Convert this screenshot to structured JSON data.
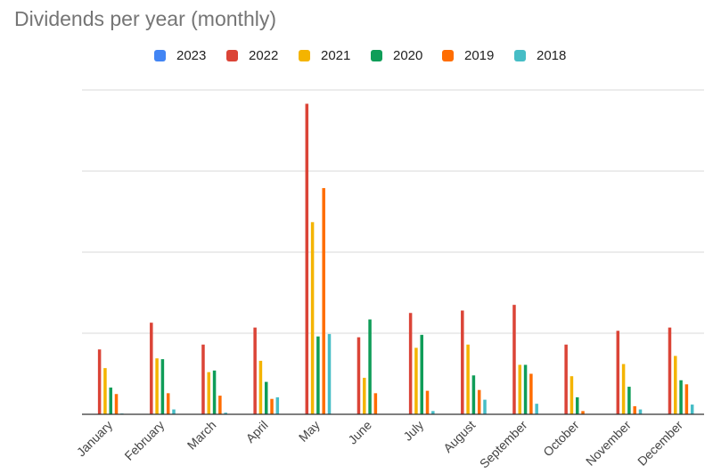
{
  "chart_data": {
    "type": "bar",
    "title": "Dividends per year (monthly)",
    "xlabel": "",
    "ylabel": "",
    "ylim": [
      0,
      4
    ],
    "grid": true,
    "legend_position": "top",
    "categories": [
      "January",
      "February",
      "March",
      "April",
      "May",
      "June",
      "July",
      "August",
      "September",
      "October",
      "November",
      "December"
    ],
    "series": [
      {
        "name": "2023",
        "color": "#4285f4",
        "values": [
          0,
          0,
          0,
          0,
          0,
          0,
          0,
          0,
          0,
          0,
          0,
          0
        ]
      },
      {
        "name": "2022",
        "color": "#db4437",
        "values": [
          0.8,
          1.13,
          0.86,
          1.07,
          3.83,
          0.95,
          1.25,
          1.28,
          1.35,
          0.86,
          1.03,
          1.07
        ]
      },
      {
        "name": "2021",
        "color": "#f4b400",
        "values": [
          0.57,
          0.69,
          0.52,
          0.66,
          2.37,
          0.45,
          0.82,
          0.86,
          0.61,
          0.47,
          0.62,
          0.72
        ]
      },
      {
        "name": "2020",
        "color": "#0f9d58",
        "values": [
          0.33,
          0.68,
          0.54,
          0.4,
          0.96,
          1.17,
          0.98,
          0.48,
          0.61,
          0.21,
          0.34,
          0.42
        ]
      },
      {
        "name": "2019",
        "color": "#ff6d01",
        "values": [
          0.25,
          0.26,
          0.23,
          0.19,
          2.79,
          0.26,
          0.29,
          0.3,
          0.5,
          0.04,
          0.1,
          0.37
        ]
      },
      {
        "name": "2018",
        "color": "#46bdc6",
        "values": [
          0.01,
          0.06,
          0.02,
          0.21,
          0.99,
          0,
          0.04,
          0.18,
          0.13,
          0,
          0.06,
          0.12
        ]
      }
    ]
  }
}
